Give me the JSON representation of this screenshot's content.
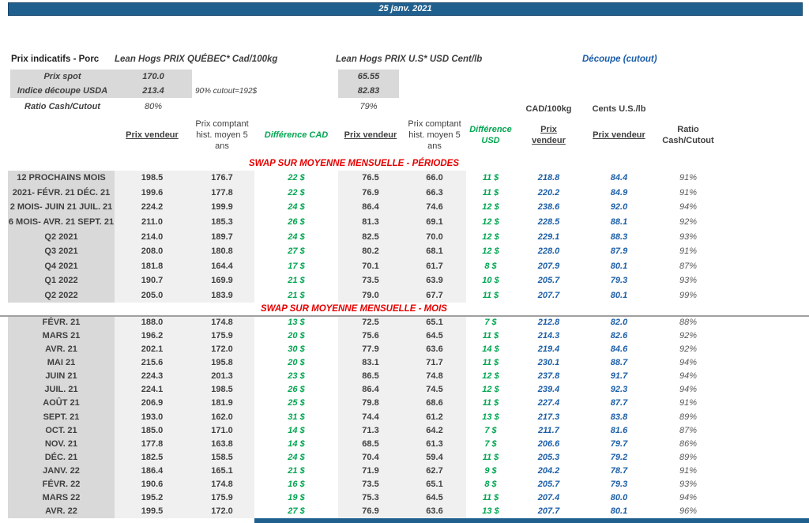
{
  "title_bar": {
    "date": "25 janv. 2021"
  },
  "colors": {
    "navy_bar": "#20608f",
    "accent_blue": "#1c5fa8",
    "accent_green": "#00a651",
    "accent_red": "#e60000",
    "label_bg": "#d9d9d9",
    "data_bg": "#f0f0f0"
  },
  "top": {
    "label": "Prix indicatifs - Porc",
    "quebec_header": "Lean Hogs PRIX QUÉBEC* Cad/100kg",
    "us_header": "Lean Hogs PRIX U.S* USD Cent/lb",
    "cutout_header": "Découpe (cutout)",
    "spot_label": "Prix spot",
    "spot_qc": "170.0",
    "spot_us": "65.55",
    "indice_label": "Indice découpe USDA",
    "indice_qc": "213.4",
    "indice_us": "82.83",
    "note": "90% cutout=192$",
    "ratio_label": "Ratio Cash/Cutout",
    "ratio_qc": "80%",
    "ratio_us": "79%",
    "unit_cad": "CAD/100kg",
    "unit_us": "Cents U.S./lb"
  },
  "columns": {
    "prix_vendeur": "Prix vendeur",
    "prix_comptant": "Prix comptant hist. moyen 5 ans",
    "diff_cad": "Différence CAD",
    "diff_usd": "Différence USD",
    "ratio": "Ratio Cash/Cutout"
  },
  "sections": [
    {
      "title": "SWAP SUR MOYENNE MENSUELLE - PÉRIODES",
      "rows": [
        {
          "label": "12 PROCHAINS MOIS",
          "cad_v": "198.5",
          "cad_h": "176.7",
          "d_cad": "22 $",
          "us_v": "76.5",
          "us_h": "66.0",
          "d_usd": "11 $",
          "co_cad": "218.8",
          "co_us": "84.4",
          "ratio": "91%"
        },
        {
          "label": "2021- FÉVR. 21 DÉC. 21",
          "cad_v": "199.6",
          "cad_h": "177.8",
          "d_cad": "22 $",
          "us_v": "76.9",
          "us_h": "66.3",
          "d_usd": "11 $",
          "co_cad": "220.2",
          "co_us": "84.9",
          "ratio": "91%"
        },
        {
          "label": "2 MOIS- JUIN 21 JUIL. 21",
          "cad_v": "224.2",
          "cad_h": "199.9",
          "d_cad": "24 $",
          "us_v": "86.4",
          "us_h": "74.6",
          "d_usd": "12 $",
          "co_cad": "238.6",
          "co_us": "92.0",
          "ratio": "94%"
        },
        {
          "label": "6 MOIS- AVR. 21 SEPT. 21",
          "cad_v": "211.0",
          "cad_h": "185.3",
          "d_cad": "26 $",
          "us_v": "81.3",
          "us_h": "69.1",
          "d_usd": "12 $",
          "co_cad": "228.5",
          "co_us": "88.1",
          "ratio": "92%"
        },
        {
          "label": "Q2 2021",
          "cad_v": "214.0",
          "cad_h": "189.7",
          "d_cad": "24 $",
          "us_v": "82.5",
          "us_h": "70.0",
          "d_usd": "12 $",
          "co_cad": "229.1",
          "co_us": "88.3",
          "ratio": "93%"
        },
        {
          "label": "Q3 2021",
          "cad_v": "208.0",
          "cad_h": "180.8",
          "d_cad": "27 $",
          "us_v": "80.2",
          "us_h": "68.1",
          "d_usd": "12 $",
          "co_cad": "228.0",
          "co_us": "87.9",
          "ratio": "91%"
        },
        {
          "label": "Q4 2021",
          "cad_v": "181.8",
          "cad_h": "164.4",
          "d_cad": "17 $",
          "us_v": "70.1",
          "us_h": "61.7",
          "d_usd": "8 $",
          "co_cad": "207.9",
          "co_us": "80.1",
          "ratio": "87%"
        },
        {
          "label": "Q1 2022",
          "cad_v": "190.7",
          "cad_h": "169.9",
          "d_cad": "21 $",
          "us_v": "73.5",
          "us_h": "63.9",
          "d_usd": "10 $",
          "co_cad": "205.7",
          "co_us": "79.3",
          "ratio": "93%"
        },
        {
          "label": "Q2 2022",
          "cad_v": "205.0",
          "cad_h": "183.9",
          "d_cad": "21 $",
          "us_v": "79.0",
          "us_h": "67.7",
          "d_usd": "11 $",
          "co_cad": "207.7",
          "co_us": "80.1",
          "ratio": "99%"
        }
      ]
    },
    {
      "title": "SWAP SUR MOYENNE MENSUELLE - MOIS",
      "rows": [
        {
          "label": "FÉVR. 21",
          "cad_v": "188.0",
          "cad_h": "174.8",
          "d_cad": "13 $",
          "us_v": "72.5",
          "us_h": "65.1",
          "d_usd": "7 $",
          "co_cad": "212.8",
          "co_us": "82.0",
          "ratio": "88%"
        },
        {
          "label": "MARS 21",
          "cad_v": "196.2",
          "cad_h": "175.9",
          "d_cad": "20 $",
          "us_v": "75.6",
          "us_h": "64.5",
          "d_usd": "11 $",
          "co_cad": "214.3",
          "co_us": "82.6",
          "ratio": "92%"
        },
        {
          "label": "AVR. 21",
          "cad_v": "202.1",
          "cad_h": "172.0",
          "d_cad": "30 $",
          "us_v": "77.9",
          "us_h": "63.6",
          "d_usd": "14 $",
          "co_cad": "219.4",
          "co_us": "84.6",
          "ratio": "92%"
        },
        {
          "label": "MAI 21",
          "cad_v": "215.6",
          "cad_h": "195.8",
          "d_cad": "20 $",
          "us_v": "83.1",
          "us_h": "71.7",
          "d_usd": "11 $",
          "co_cad": "230.1",
          "co_us": "88.7",
          "ratio": "94%"
        },
        {
          "label": "JUIN 21",
          "cad_v": "224.3",
          "cad_h": "201.3",
          "d_cad": "23 $",
          "us_v": "86.5",
          "us_h": "74.8",
          "d_usd": "12 $",
          "co_cad": "237.8",
          "co_us": "91.7",
          "ratio": "94%"
        },
        {
          "label": "JUIL. 21",
          "cad_v": "224.1",
          "cad_h": "198.5",
          "d_cad": "26 $",
          "us_v": "86.4",
          "us_h": "74.5",
          "d_usd": "12 $",
          "co_cad": "239.4",
          "co_us": "92.3",
          "ratio": "94%"
        },
        {
          "label": "AOÛT 21",
          "cad_v": "206.9",
          "cad_h": "181.9",
          "d_cad": "25 $",
          "us_v": "79.8",
          "us_h": "68.6",
          "d_usd": "11 $",
          "co_cad": "227.4",
          "co_us": "87.7",
          "ratio": "91%"
        },
        {
          "label": "SEPT. 21",
          "cad_v": "193.0",
          "cad_h": "162.0",
          "d_cad": "31 $",
          "us_v": "74.4",
          "us_h": "61.2",
          "d_usd": "13 $",
          "co_cad": "217.3",
          "co_us": "83.8",
          "ratio": "89%"
        },
        {
          "label": "OCT. 21",
          "cad_v": "185.0",
          "cad_h": "171.0",
          "d_cad": "14 $",
          "us_v": "71.3",
          "us_h": "64.2",
          "d_usd": "7 $",
          "co_cad": "211.7",
          "co_us": "81.6",
          "ratio": "87%"
        },
        {
          "label": "NOV. 21",
          "cad_v": "177.8",
          "cad_h": "163.8",
          "d_cad": "14 $",
          "us_v": "68.5",
          "us_h": "61.3",
          "d_usd": "7 $",
          "co_cad": "206.6",
          "co_us": "79.7",
          "ratio": "86%"
        },
        {
          "label": "DÉC. 21",
          "cad_v": "182.5",
          "cad_h": "158.5",
          "d_cad": "24 $",
          "us_v": "70.4",
          "us_h": "59.4",
          "d_usd": "11 $",
          "co_cad": "205.3",
          "co_us": "79.2",
          "ratio": "89%"
        },
        {
          "label": "JANV. 22",
          "cad_v": "186.4",
          "cad_h": "165.1",
          "d_cad": "21 $",
          "us_v": "71.9",
          "us_h": "62.7",
          "d_usd": "9 $",
          "co_cad": "204.2",
          "co_us": "78.7",
          "ratio": "91%"
        },
        {
          "label": "FÉVR. 22",
          "cad_v": "190.6",
          "cad_h": "174.8",
          "d_cad": "16 $",
          "us_v": "73.5",
          "us_h": "65.1",
          "d_usd": "8 $",
          "co_cad": "205.7",
          "co_us": "79.3",
          "ratio": "93%"
        },
        {
          "label": "MARS 22",
          "cad_v": "195.2",
          "cad_h": "175.9",
          "d_cad": "19 $",
          "us_v": "75.3",
          "us_h": "64.5",
          "d_usd": "11 $",
          "co_cad": "207.4",
          "co_us": "80.0",
          "ratio": "94%"
        },
        {
          "label": "AVR. 22",
          "cad_v": "199.5",
          "cad_h": "172.0",
          "d_cad": "27 $",
          "us_v": "76.9",
          "us_h": "63.6",
          "d_usd": "13 $",
          "co_cad": "207.7",
          "co_us": "80.1",
          "ratio": "96%"
        }
      ]
    }
  ]
}
